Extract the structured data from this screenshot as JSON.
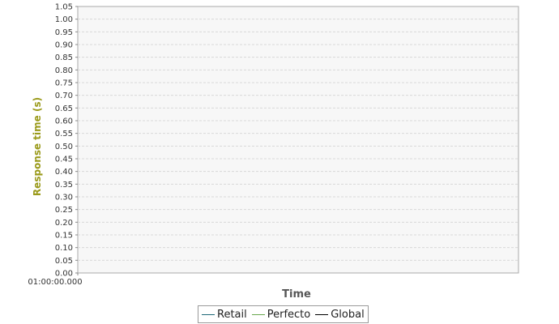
{
  "chart_data": {
    "type": "line",
    "title": "",
    "xlabel": "Time",
    "ylabel": "Response time (s)",
    "x_ticks": [
      "01:00:00.000"
    ],
    "ylim": [
      0,
      1.05
    ],
    "y_ticks": [
      "0.00",
      "0.05",
      "0.10",
      "0.15",
      "0.20",
      "0.25",
      "0.30",
      "0.35",
      "0.40",
      "0.45",
      "0.50",
      "0.55",
      "0.60",
      "0.65",
      "0.70",
      "0.75",
      "0.80",
      "0.85",
      "0.90",
      "0.95",
      "1.00",
      "1.05"
    ],
    "grid": true,
    "legend_position": "bottom-center",
    "series": [
      {
        "name": "Retail",
        "color": "#1f6a78",
        "values": []
      },
      {
        "name": "Perfecto",
        "color": "#6aa84f",
        "values": []
      },
      {
        "name": "Global",
        "color": "#000000",
        "values": []
      }
    ],
    "colors": {
      "plot_background": "#f7f7f7",
      "gridline": "#d8d8d8",
      "ylabel": "#9a9a1a",
      "xlabel": "#555555"
    }
  }
}
